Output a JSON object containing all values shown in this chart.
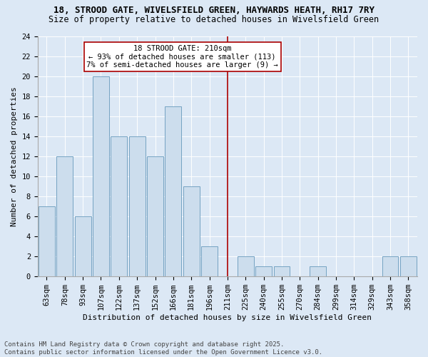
{
  "title1": "18, STROOD GATE, WIVELSFIELD GREEN, HAYWARDS HEATH, RH17 7RY",
  "title2": "Size of property relative to detached houses in Wivelsfield Green",
  "xlabel": "Distribution of detached houses by size in Wivelsfield Green",
  "ylabel": "Number of detached properties",
  "categories": [
    "63sqm",
    "78sqm",
    "93sqm",
    "107sqm",
    "122sqm",
    "137sqm",
    "152sqm",
    "166sqm",
    "181sqm",
    "196sqm",
    "211sqm",
    "225sqm",
    "240sqm",
    "255sqm",
    "270sqm",
    "284sqm",
    "299sqm",
    "314sqm",
    "329sqm",
    "343sqm",
    "358sqm"
  ],
  "values": [
    7,
    12,
    6,
    20,
    14,
    14,
    12,
    17,
    9,
    3,
    0,
    2,
    1,
    1,
    0,
    1,
    0,
    0,
    0,
    2,
    2
  ],
  "bar_color": "#ccdded",
  "bar_edge_color": "#6699bb",
  "vline_index": 10,
  "vline_color": "#aa0000",
  "annotation_text": "18 STROOD GATE: 210sqm\n← 93% of detached houses are smaller (113)\n7% of semi-detached houses are larger (9) →",
  "annotation_box_color": "#aa0000",
  "ylim": [
    0,
    24
  ],
  "yticks": [
    0,
    2,
    4,
    6,
    8,
    10,
    12,
    14,
    16,
    18,
    20,
    22,
    24
  ],
  "footnote": "Contains HM Land Registry data © Crown copyright and database right 2025.\nContains public sector information licensed under the Open Government Licence v3.0.",
  "bg_color": "#dce8f5",
  "plot_bg_color": "#dce8f5",
  "title_fontsize": 9,
  "subtitle_fontsize": 8.5,
  "axis_label_fontsize": 8,
  "tick_fontsize": 7.5,
  "footnote_fontsize": 6.5,
  "annot_fontsize": 7.5
}
